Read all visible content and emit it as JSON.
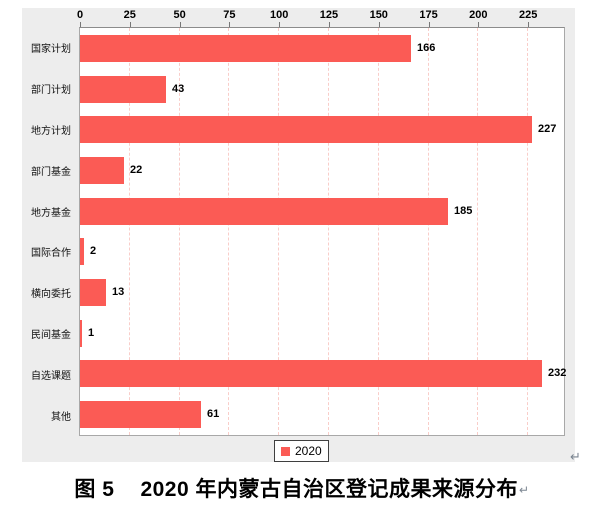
{
  "chart_data": {
    "type": "bar",
    "orientation": "horizontal",
    "categories": [
      "国家计划",
      "部门计划",
      "地方计划",
      "部门基金",
      "地方基金",
      "国际合作",
      "横向委托",
      "民间基金",
      "自选课题",
      "其他"
    ],
    "values": [
      166,
      43,
      227,
      22,
      185,
      2,
      13,
      1,
      232,
      61
    ],
    "series_name": "2020",
    "x_ticks": [
      0,
      25,
      50,
      75,
      100,
      125,
      150,
      175,
      200,
      225
    ],
    "xlim": [
      0,
      243
    ],
    "axis_position": "top",
    "grid": "vertical dashed",
    "legend_position": "bottom-center",
    "data_labels": true
  },
  "legend": {
    "label": "2020"
  },
  "caption": {
    "figure_label": "图 5",
    "title": "2020 年内蒙古自治区登记成果来源分布"
  },
  "marks": {
    "after_chart": "↵",
    "after_caption": "↵"
  },
  "colors": {
    "bar": "#fb5b55",
    "panel_bg": "#ededed",
    "gridline": "#f9cdc9",
    "plot_border": "#a8a8a8"
  }
}
